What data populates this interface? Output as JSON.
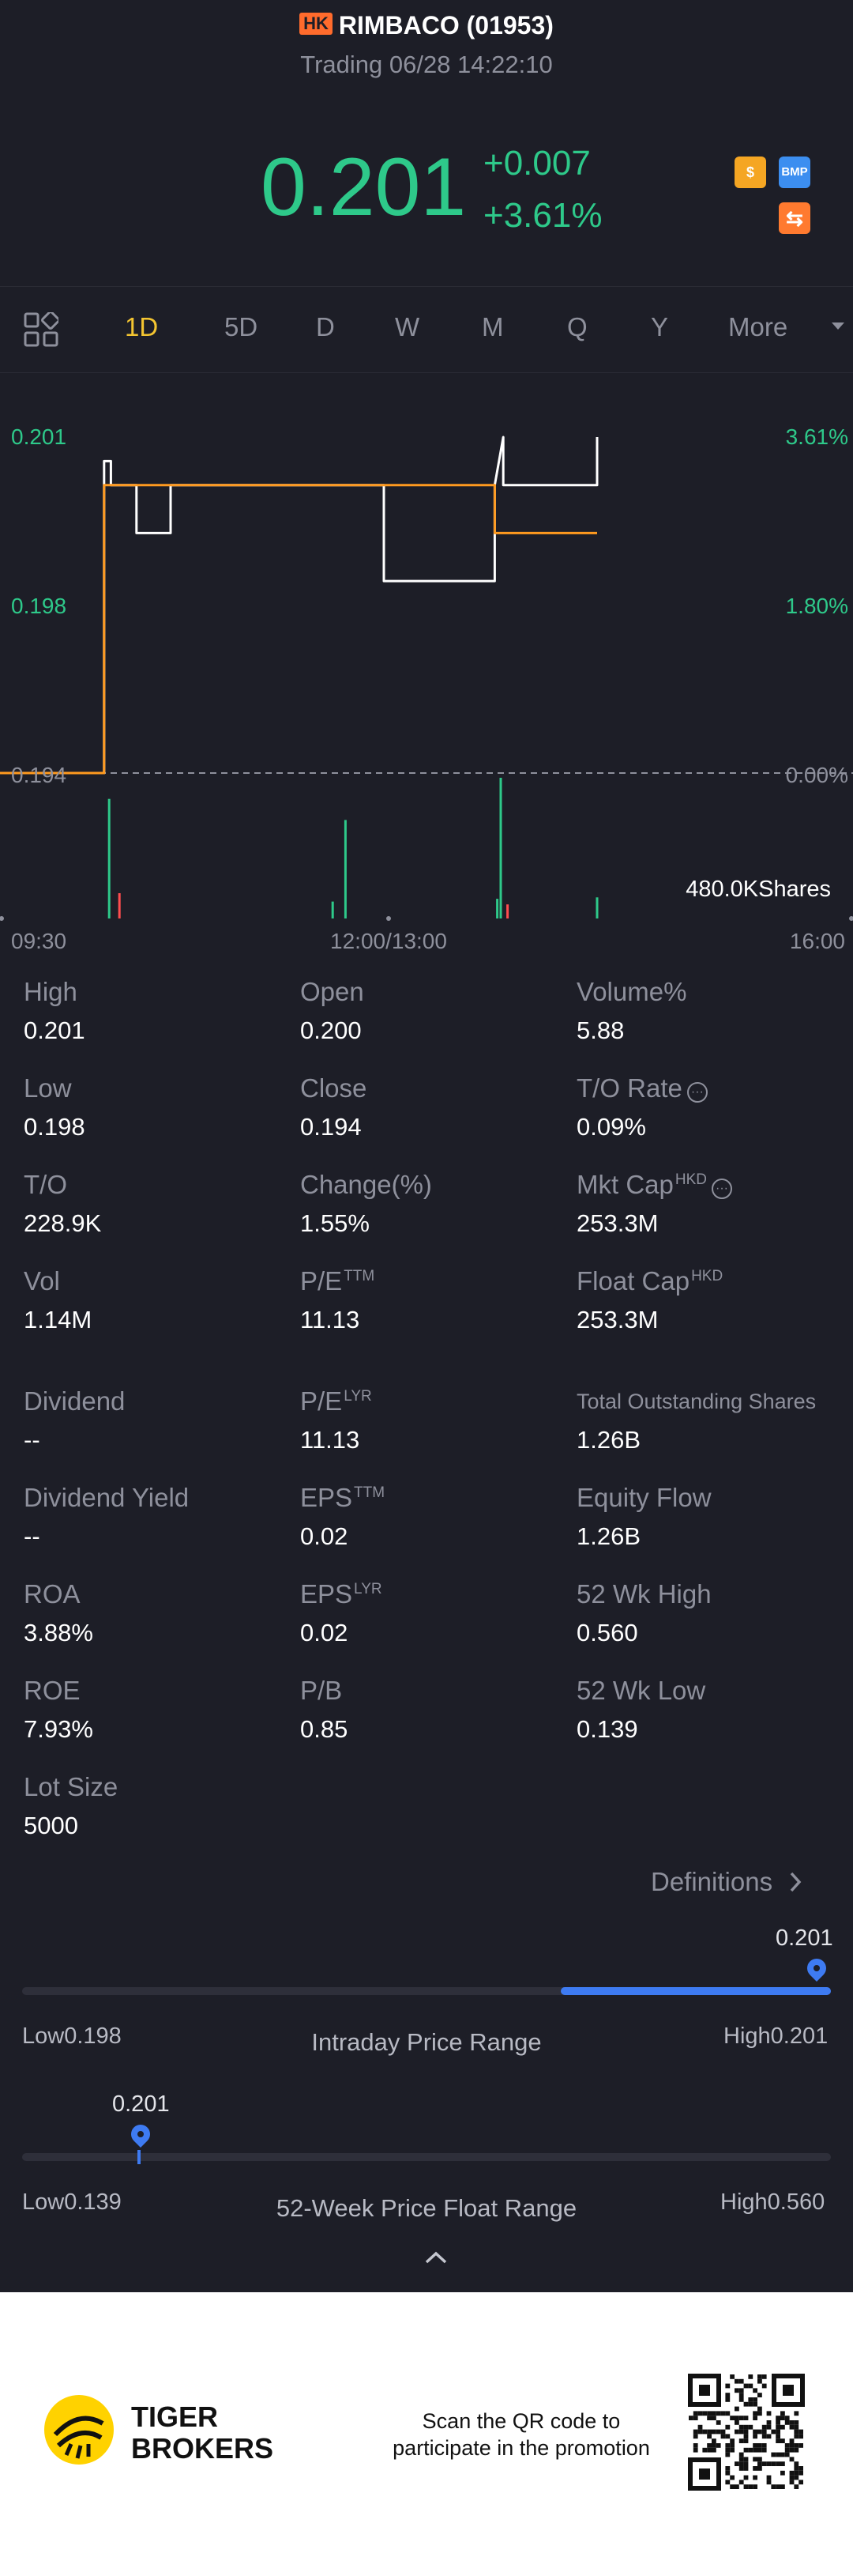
{
  "header": {
    "market_badge": "HK",
    "title": "RIMBACO (01953)",
    "status": "Trading 06/28 14:22:10"
  },
  "quote": {
    "price": "0.201",
    "change": "+0.007",
    "change_pct": "+3.61%",
    "icons": [
      {
        "name": "dollar-icon",
        "label": "$",
        "color": "#f5a623"
      },
      {
        "name": "bmp-icon",
        "label": "BMP",
        "color": "#3c8ef0"
      },
      {
        "name": "swap-icon",
        "label": "⇆",
        "color": "#ff7a2f"
      }
    ]
  },
  "tabs": [
    "1D",
    "5D",
    "D",
    "W",
    "M",
    "Q",
    "Y",
    "More"
  ],
  "active_tab": "1D",
  "chart_data": {
    "type": "line",
    "x_start": "09:30",
    "x_mid": "12:00/13:00",
    "x_end": "16:00",
    "y_left_ticks": [
      "0.201",
      "0.198",
      "0.194"
    ],
    "y_right_ticks": [
      "3.61%",
      "1.80%",
      "0.00%"
    ],
    "ylim": [
      0.194,
      0.201
    ],
    "prev_close": 0.194,
    "volume_label": "480.0KShares",
    "series": [
      {
        "values_t": [
          0.0,
          0.122,
          0.122,
          0.13,
          0.13,
          0.16,
          0.16,
          0.2,
          0.2,
          0.45,
          0.45,
          0.58,
          0.58,
          0.59,
          0.59,
          0.6,
          0.6,
          0.7,
          0.7
        ],
        "values_y": [
          0.194,
          0.194,
          0.2005,
          0.2005,
          0.2,
          0.2,
          0.199,
          0.199,
          0.2,
          0.2,
          0.198,
          0.198,
          0.2,
          0.201,
          0.2,
          0.2,
          0.2,
          0.2,
          0.201
        ],
        "color": "#ffffff"
      },
      {
        "values_t": [
          0.0,
          0.122,
          0.122,
          0.58,
          0.58,
          0.7
        ],
        "values_y": [
          0.194,
          0.194,
          0.2,
          0.2,
          0.199,
          0.199
        ],
        "color": "#ff9a1f"
      }
    ],
    "volume_bars": [
      {
        "t": 0.128,
        "h": 0.85,
        "c": "#2ec98a"
      },
      {
        "t": 0.14,
        "h": 0.18,
        "c": "#ff4d4f"
      },
      {
        "t": 0.39,
        "h": 0.12,
        "c": "#2ec98a"
      },
      {
        "t": 0.405,
        "h": 0.7,
        "c": "#2ec98a"
      },
      {
        "t": 0.583,
        "h": 0.14,
        "c": "#2ec98a"
      },
      {
        "t": 0.587,
        "h": 1.0,
        "c": "#2ec98a"
      },
      {
        "t": 0.595,
        "h": 0.1,
        "c": "#ff4d4f"
      },
      {
        "t": 0.7,
        "h": 0.15,
        "c": "#2ec98a"
      }
    ]
  },
  "stats": [
    {
      "label": "High",
      "value": "0.201"
    },
    {
      "label": "Open",
      "value": "0.200"
    },
    {
      "label": "Volume%",
      "value": "5.88"
    },
    {
      "label": "Low",
      "value": "0.198"
    },
    {
      "label": "Close",
      "value": "0.194"
    },
    {
      "label": "T/O Rate",
      "value": "0.09%"
    },
    {
      "label": "T/O",
      "value": "228.9K"
    },
    {
      "label": "Change(%)",
      "value": "1.55%"
    },
    {
      "label": "Mkt Cap",
      "sup": "HKD",
      "value": "253.3M"
    },
    {
      "label": "Vol",
      "value": "1.14M"
    },
    {
      "label": "P/E",
      "sup": "TTM",
      "value": "11.13"
    },
    {
      "label": "Float Cap",
      "sup": "HKD",
      "value": "253.3M"
    },
    {
      "label": "Dividend",
      "value": "--"
    },
    {
      "label": "P/E",
      "sup": "LYR",
      "value": "11.13"
    },
    {
      "label": "Total Outstanding Shares",
      "value": "1.26B"
    },
    {
      "label": "Dividend Yield",
      "value": "--"
    },
    {
      "label": "EPS",
      "sup": "TTM",
      "value": "0.02"
    },
    {
      "label": "Equity Flow",
      "value": "1.26B"
    },
    {
      "label": "ROA",
      "value": "3.88%"
    },
    {
      "label": "EPS",
      "sup": "LYR",
      "value": "0.02"
    },
    {
      "label": "52 Wk High",
      "value": "0.560"
    },
    {
      "label": "ROE",
      "value": "7.93%"
    },
    {
      "label": "P/B",
      "value": "0.85"
    },
    {
      "label": "52 Wk Low",
      "value": "0.139"
    },
    {
      "label": "Lot Size",
      "value": "5000"
    }
  ],
  "definitions_label": "Definitions",
  "intraday_range": {
    "title": "Intraday Price Range",
    "low_label": "Low",
    "low": "0.198",
    "high_label": "High",
    "high": "0.201",
    "current": "0.201",
    "fill_fraction": 1.0
  },
  "week52_range": {
    "title": "52-Week Price Float Range",
    "low_label": "Low",
    "low": "0.139",
    "high_label": "High",
    "high": "0.560",
    "current": "0.201",
    "marker_fraction": 0.147
  },
  "footer": {
    "brand_line1": "TIGER",
    "brand_line2": "BROKERS",
    "promo_line1": "Scan the QR code to",
    "promo_line2": "participate in the promotion"
  }
}
